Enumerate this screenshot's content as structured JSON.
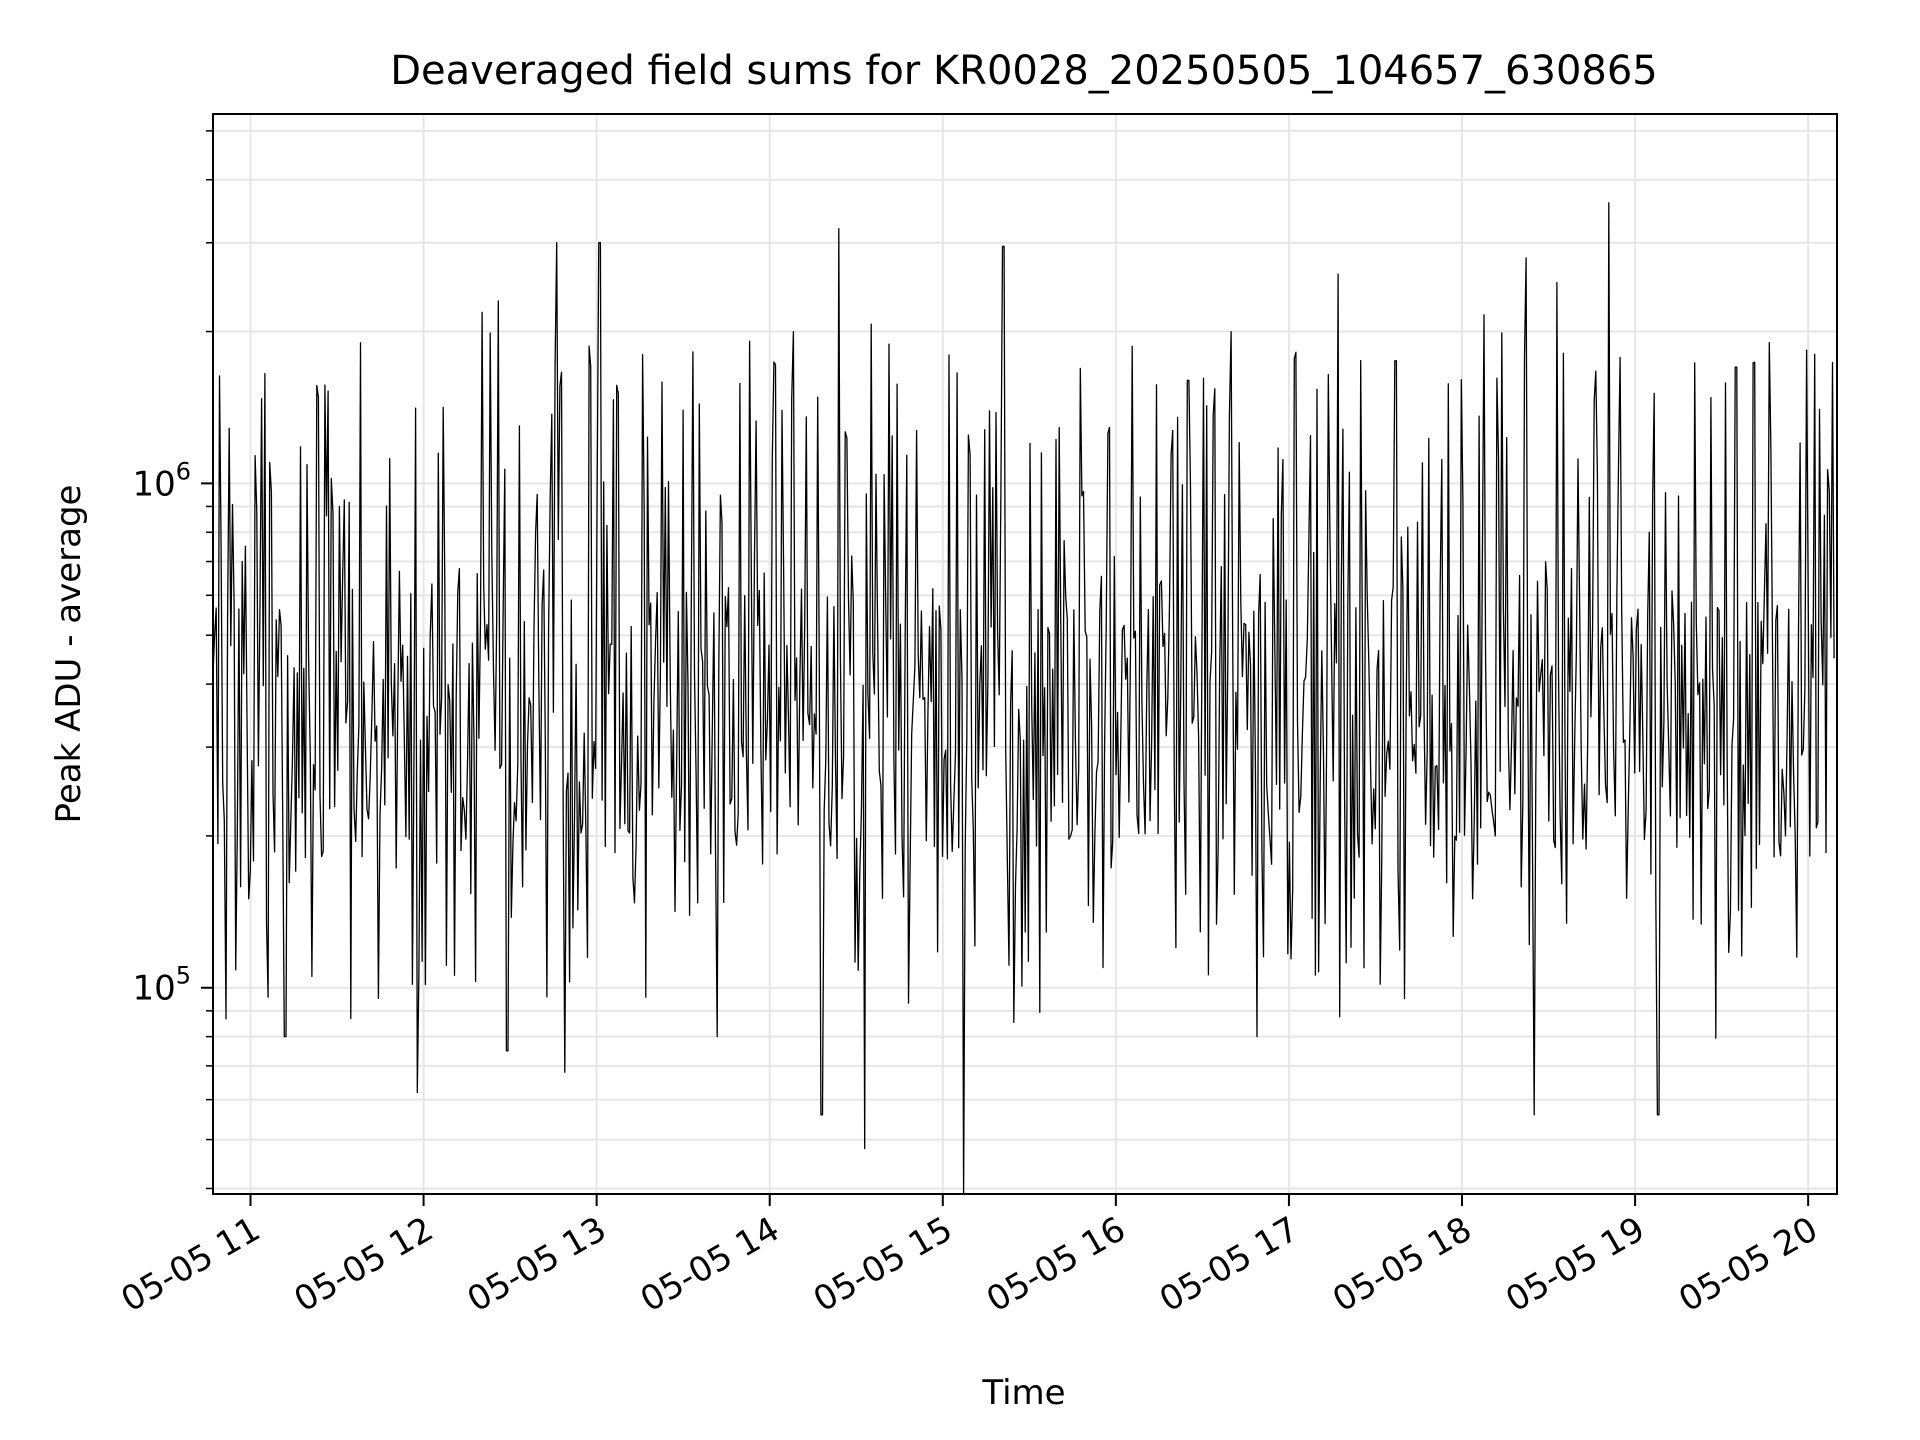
{
  "chart_data": {
    "type": "line",
    "title": "Deaveraged field sums for KR0028_20250505_104657_630865",
    "xlabel": "Time",
    "ylabel": "Peak ADU - average",
    "x_scale": "time",
    "y_scale": "log",
    "xlim": [
      "2025-05-05T10:47:00",
      "2025-05-05T20:10:00"
    ],
    "ylim": [
      39000,
      5400000
    ],
    "x_ticks": [
      "05-05 11",
      "05-05 12",
      "05-05 13",
      "05-05 14",
      "05-05 15",
      "05-05 16",
      "05-05 17",
      "05-05 18",
      "05-05 19",
      "05-05 20"
    ],
    "x_tick_times": [
      "2025-05-05T11:00:00",
      "2025-05-05T12:00:00",
      "2025-05-05T13:00:00",
      "2025-05-05T14:00:00",
      "2025-05-05T15:00:00",
      "2025-05-05T16:00:00",
      "2025-05-05T17:00:00",
      "2025-05-05T18:00:00",
      "2025-05-05T19:00:00",
      "2025-05-05T20:00:00"
    ],
    "y_ticks": [
      {
        "base": "10",
        "exp": "5",
        "value": 100000
      },
      {
        "base": "10",
        "exp": "6",
        "value": 1000000
      }
    ],
    "grid": true,
    "line_color": "#000000",
    "series": [
      {
        "x": [
          "2025-05-05T10:47:00",
          "2025-05-05T10:57:00",
          "2025-05-05T11:05:00",
          "2025-05-05T11:12:00",
          "2025-05-05T11:20:00",
          "2025-05-05T11:31:00",
          "2025-05-05T11:38:00",
          "2025-05-05T11:45:00",
          "2025-05-05T11:58:00",
          "2025-05-05T12:26:00",
          "2025-05-05T12:29:00",
          "2025-05-05T12:33:00",
          "2025-05-05T12:46:00",
          "2025-05-05T12:49:00",
          "2025-05-05T13:01:00",
          "2025-05-05T13:05:00",
          "2025-05-05T13:16:00",
          "2025-05-05T13:42:00",
          "2025-05-05T13:45:00",
          "2025-05-05T14:08:00",
          "2025-05-05T14:18:00",
          "2025-05-05T14:24:00",
          "2025-05-05T14:33:00",
          "2025-05-05T14:46:00",
          "2025-05-05T15:07:00",
          "2025-05-05T15:13:00",
          "2025-05-05T15:21:00",
          "2025-05-05T15:41:00",
          "2025-05-05T16:25:00",
          "2025-05-05T16:40:00",
          "2025-05-05T16:49:00",
          "2025-05-05T17:17:00",
          "2025-05-05T17:37:00",
          "2025-05-05T18:22:00",
          "2025-05-05T18:25:00",
          "2025-05-05T18:33:00",
          "2025-05-05T18:51:00",
          "2025-05-05T19:05:00",
          "2025-05-05T19:08:00",
          "2025-05-05T19:35:00",
          "2025-05-05T19:52:00",
          "2025-05-05T20:00:00",
          "2025-05-05T20:09:00"
        ],
        "y": [
          420000,
          700000,
          1650000,
          80000,
          450000,
          900000,
          1900000,
          220000,
          62000,
          2300000,
          75000,
          1300000,
          3000000,
          68000,
          3000000,
          480000,
          1800000,
          80000,
          520000,
          2000000,
          56000,
          3200000,
          48000,
          200000,
          39000,
          400000,
          2950000,
          520000,
          1600000,
          2000000,
          80000,
          2600000,
          1750000,
          2800000,
          56000,
          2500000,
          3600000,
          800000,
          56000,
          1700000,
          200000,
          600000,
          450000
        ]
      }
    ]
  }
}
